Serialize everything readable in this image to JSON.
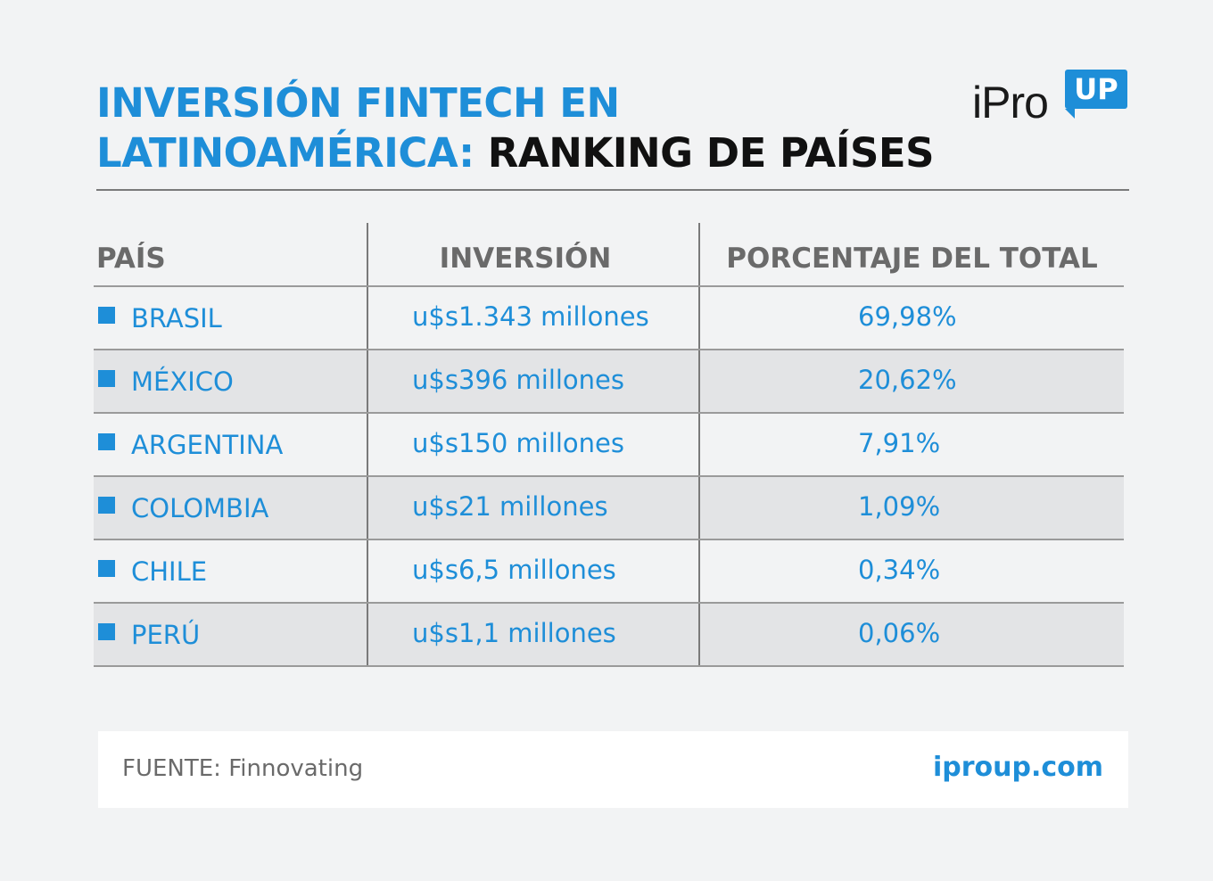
{
  "title": {
    "line1_blue": "INVERSIÓN FINTECH EN",
    "line2_blue": "LATINOAMÉRICA:",
    "line2_dark": "RANKING DE PAÍSES"
  },
  "logo": {
    "text": "iPro",
    "badge": "UP"
  },
  "colors": {
    "accent": "#1e8ed8",
    "row_shade": "#e3e4e6",
    "background": "#f2f3f4"
  },
  "chart_data": {
    "type": "table",
    "columns": [
      "PAÍS",
      "INVERSIÓN",
      "PORCENTAJE DEL TOTAL"
    ],
    "rows": [
      {
        "country": "BRASIL",
        "investment": "u$s1.343 millones",
        "percent": "69,98%"
      },
      {
        "country": "MÉXICO",
        "investment": "u$s396 millones",
        "percent": "20,62%"
      },
      {
        "country": "ARGENTINA",
        "investment": "u$s150 millones",
        "percent": "7,91%"
      },
      {
        "country": "COLOMBIA",
        "investment": "u$s21 millones",
        "percent": "1,09%"
      },
      {
        "country": "CHILE",
        "investment": "u$s6,5 millones",
        "percent": "0,34%"
      },
      {
        "country": "PERÚ",
        "investment": "u$s1,1 millones",
        "percent": "0,06%"
      }
    ]
  },
  "footer": {
    "source": "FUENTE: Finnovating",
    "url": "iproup.com"
  }
}
